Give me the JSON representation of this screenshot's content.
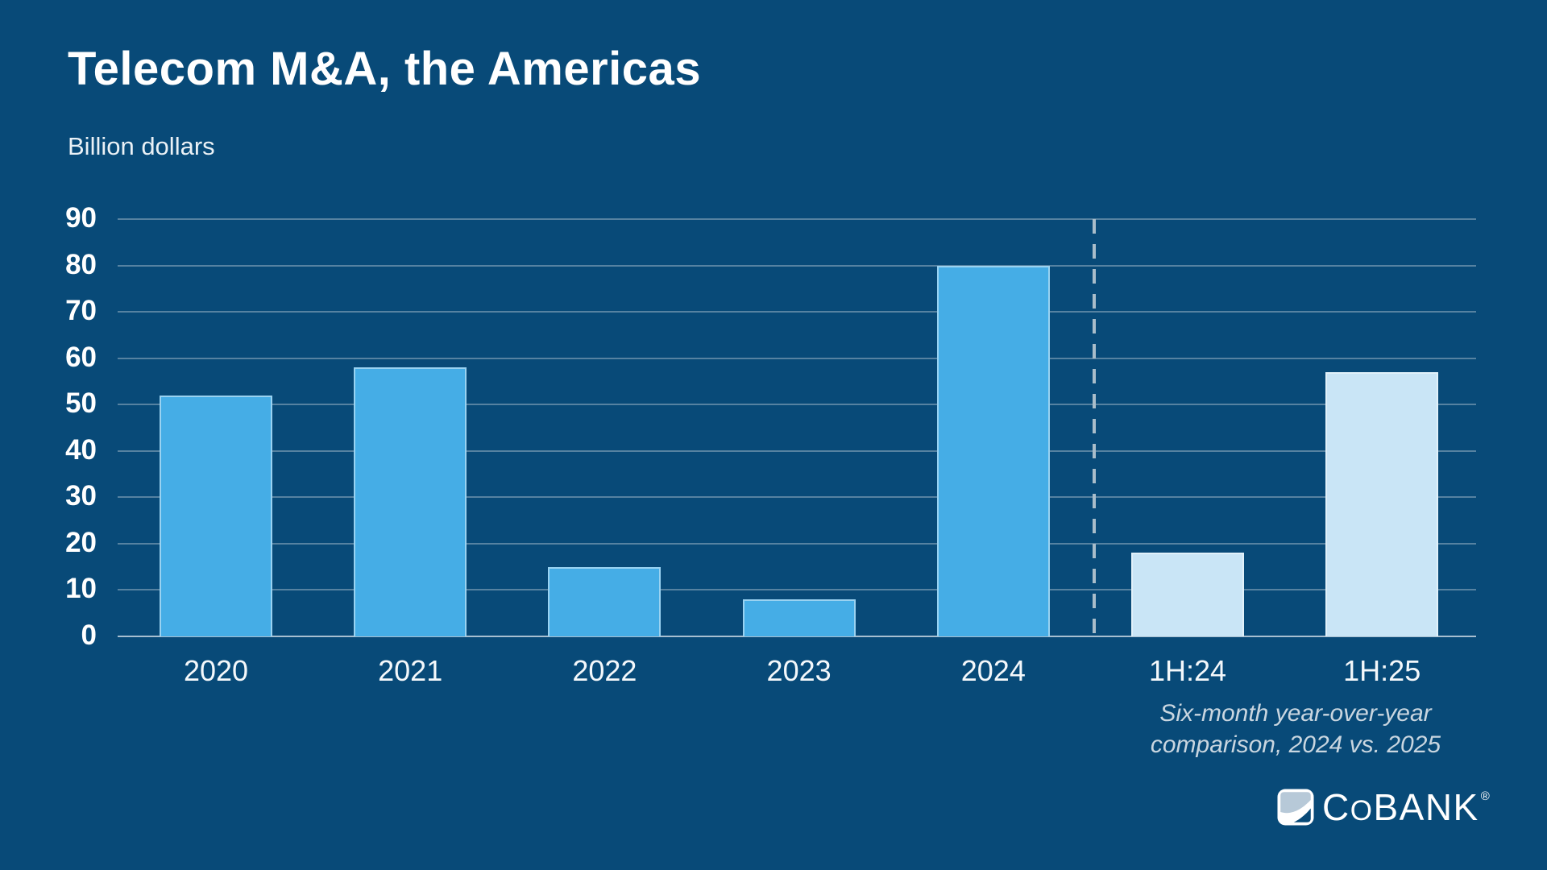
{
  "title": "Telecom M&A, the Americas",
  "subtitle": "Billion dollars",
  "chart_data": {
    "type": "bar",
    "title": "Telecom M&A, the Americas",
    "ylabel": "Billion dollars",
    "ylim": [
      0,
      90
    ],
    "y_ticks": [
      90,
      80,
      70,
      60,
      50,
      40,
      30,
      20,
      10,
      0
    ],
    "grid": true,
    "legend": "none",
    "categories": [
      "2020",
      "2021",
      "2022",
      "2023",
      "2024",
      "1H:24",
      "1H:25"
    ],
    "bars": [
      {
        "label": "2020",
        "value": 52,
        "group": "annual"
      },
      {
        "label": "2021",
        "value": 58,
        "group": "annual"
      },
      {
        "label": "2022",
        "value": 15,
        "group": "annual"
      },
      {
        "label": "2023",
        "value": 8,
        "group": "annual"
      },
      {
        "label": "2024",
        "value": 80,
        "group": "annual"
      },
      {
        "label": "1H:24",
        "value": 18,
        "group": "six_month"
      },
      {
        "label": "1H:25",
        "value": 57,
        "group": "six_month"
      }
    ],
    "group_colors": {
      "annual": "#45ADE6",
      "six_month": "#C9E5F6"
    },
    "divider": {
      "after_category": "2024",
      "style": "dashed"
    }
  },
  "annotation": {
    "line1": "Six-month year-over-year",
    "line2": "comparison, 2024 vs. 2025"
  },
  "logo": {
    "text": "CoBANK",
    "registered": "®"
  },
  "colors": {
    "background": "#084A78",
    "bar_annual": "#45ADE6",
    "bar_six_month": "#C9E5F6",
    "gridline": "#A9C0CE",
    "divider": "#A9BDCA",
    "text": "#FFFFFF",
    "annotation_text": "#C9D6E0"
  }
}
